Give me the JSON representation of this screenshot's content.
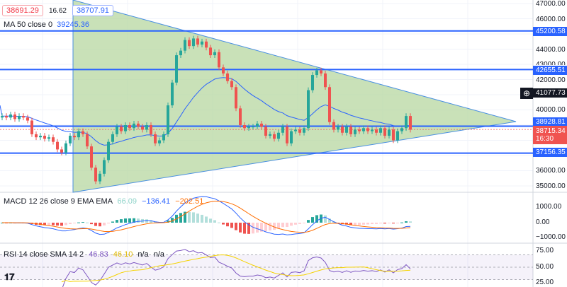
{
  "header": {
    "bid": "38691.29",
    "spread": "16.62",
    "ask": "38707.91",
    "ma_label": "MA 50 close 0",
    "ma_value": "39245.36"
  },
  "macd_legend": {
    "label": "MACD 12 26 close 9 EMA EMA",
    "hist": "66.09",
    "macd": "−136.41",
    "signal": "−202.51"
  },
  "rsi_legend": {
    "label": "RSI 14 close SMA 14 2",
    "rsi": "46.83",
    "sma": "46.10",
    "na1": "n/a",
    "na2": "n/a"
  },
  "price_axis": {
    "ticks": [
      "47000.00",
      "46000.00",
      "44000.00",
      "43000.00",
      "42000.00",
      "40000.00",
      "36000.00",
      "35000.00"
    ],
    "levels": [
      "45200.58",
      "42655.51",
      "38928.81",
      "37156.35"
    ],
    "crosshair": "41077.73",
    "last_price": "38715.34",
    "countdown": "16:30"
  },
  "macd_axis": {
    "ticks": [
      "1000.00",
      "0.00",
      "−1000.00"
    ]
  },
  "rsi_axis": {
    "ticks": [
      "75.00",
      "50.00",
      "25.00"
    ]
  },
  "colors": {
    "up": "#26a69a",
    "down": "#ef5350",
    "level": "#2962ff",
    "triangle_fill": "#b7d7a0",
    "ma": "#2962ff",
    "macd": "#2962ff",
    "signal": "#ff6d00",
    "rsi": "#7e57c2",
    "rsi_sma": "#f5d300"
  },
  "chart_data": {
    "type": "candlestick",
    "ylim": [
      35000,
      47000
    ],
    "horizontal_levels": [
      45200.58,
      42655.51,
      38928.81,
      37156.35
    ],
    "closes": [
      39600,
      39500,
      39700,
      39400,
      39600,
      39500,
      39300,
      38400,
      38200,
      38300,
      38100,
      38200,
      37900,
      37400,
      37200,
      37800,
      38300,
      38200,
      38600,
      38400,
      37600,
      36200,
      35300,
      35800,
      36700,
      37900,
      38400,
      38900,
      38600,
      39000,
      38800,
      39100,
      38900,
      38700,
      39000,
      38400,
      37800,
      38000,
      38400,
      40300,
      41800,
      43600,
      43900,
      44600,
      44200,
      44700,
      44300,
      44500,
      44100,
      43600,
      43800,
      42800,
      42400,
      41900,
      41500,
      40100,
      39000,
      38800,
      38900,
      38900,
      39100,
      38900,
      38300,
      38400,
      38100,
      38500,
      38900,
      37800,
      38600,
      38700,
      38500,
      38800,
      41300,
      42300,
      42600,
      42400,
      41500,
      39200,
      38700,
      38900,
      38500,
      38900,
      38400,
      38700,
      38600,
      38800,
      38600,
      38700,
      38500,
      38800,
      38300,
      38700,
      38000,
      38600,
      38800,
      39600,
      38700
    ]
  }
}
